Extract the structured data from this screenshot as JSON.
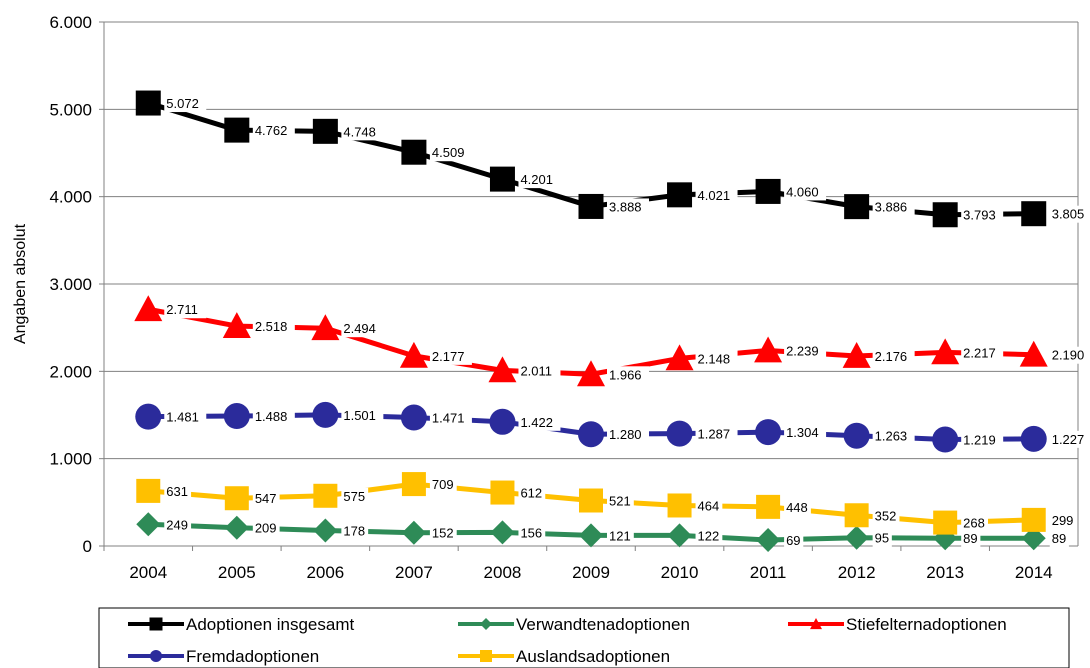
{
  "chart_data": {
    "type": "line",
    "title": "",
    "xlabel": "",
    "ylabel": "Angaben absolut",
    "ylim": [
      0,
      6000
    ],
    "yticks": [
      0,
      1000,
      2000,
      3000,
      4000,
      5000,
      6000
    ],
    "ytick_labels": [
      "0",
      "1.000",
      "2.000",
      "3.000",
      "4.000",
      "5.000",
      "6.000"
    ],
    "grid": "horizontal",
    "legend_position": "bottom",
    "categories": [
      "2004",
      "2005",
      "2006",
      "2007",
      "2008",
      "2009",
      "2010",
      "2011",
      "2012",
      "2013",
      "2014"
    ],
    "series": [
      {
        "name": "Adoptionen insgesamt",
        "color": "#000000",
        "marker": "square",
        "values": [
          5072,
          4762,
          4748,
          4509,
          4201,
          3888,
          4021,
          4060,
          3886,
          3793,
          3805
        ],
        "labels": [
          "5.072",
          "4.762",
          "4.748",
          "4.509",
          "4.201",
          "3.888",
          "4.021",
          "4.060",
          "3.886",
          "3.793",
          "3.805"
        ]
      },
      {
        "name": "Verwandtenadoptionen",
        "color": "#2e8b57",
        "marker": "diamond",
        "values": [
          249,
          209,
          178,
          152,
          156,
          121,
          122,
          69,
          95,
          89,
          89
        ],
        "labels": [
          "249",
          "209",
          "178",
          "152",
          "156",
          "121",
          "122",
          "69",
          "95",
          "89",
          "89"
        ]
      },
      {
        "name": "Stiefelternadoptionen",
        "color": "#ff0000",
        "marker": "triangle",
        "values": [
          2711,
          2518,
          2494,
          2177,
          2011,
          1966,
          2148,
          2239,
          2176,
          2217,
          2190
        ],
        "labels": [
          "2.711",
          "2.518",
          "2.494",
          "2.177",
          "2.011",
          "1.966",
          "2.148",
          "2.239",
          "2.176",
          "2.217",
          "2.190"
        ]
      },
      {
        "name": "Fremdadoptionen",
        "color": "#2b2b9b",
        "marker": "circle",
        "values": [
          1481,
          1488,
          1501,
          1471,
          1422,
          1280,
          1287,
          1304,
          1263,
          1219,
          1227
        ],
        "labels": [
          "1.481",
          "1.488",
          "1.501",
          "1.471",
          "1.422",
          "1.280",
          "1.287",
          "1.304",
          "1.263",
          "1.219",
          "1.227"
        ]
      },
      {
        "name": "Auslandsadoptionen",
        "color": "#ffc000",
        "marker": "square",
        "values": [
          631,
          547,
          575,
          709,
          612,
          521,
          464,
          448,
          352,
          268,
          299
        ],
        "labels": [
          "631",
          "547",
          "575",
          "709",
          "612",
          "521",
          "464",
          "448",
          "352",
          "268",
          "299"
        ]
      }
    ]
  }
}
